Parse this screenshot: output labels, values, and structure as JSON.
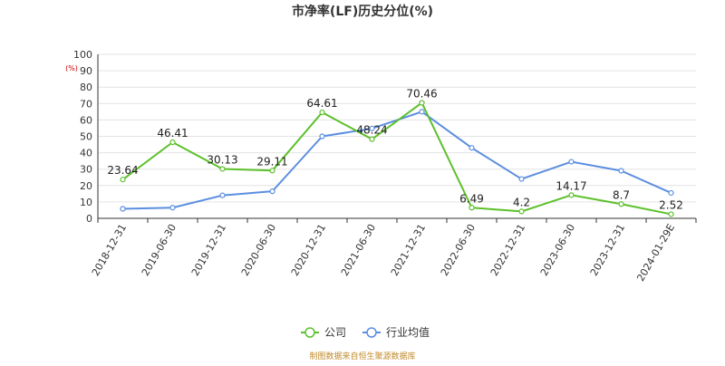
{
  "chart_data": {
    "type": "line",
    "title": "市净率(LF)历史分位(%)",
    "unit_label": "(%)",
    "ylim": [
      0,
      100
    ],
    "yticks": [
      0,
      10,
      20,
      30,
      40,
      50,
      60,
      70,
      80,
      90,
      100
    ],
    "categories": [
      "2018-12-31",
      "2019-06-30",
      "2019-12-31",
      "2020-06-30",
      "2020-12-31",
      "2021-06-30",
      "2021-12-31",
      "2022-06-30",
      "2022-12-31",
      "2023-06-30",
      "2023-12-31",
      "2024-01-29E"
    ],
    "series": [
      {
        "name": "公司",
        "color": "#5cc02a",
        "values": [
          23.64,
          46.41,
          30.13,
          29.11,
          64.61,
          48.24,
          70.46,
          6.49,
          4.2,
          14.17,
          8.7,
          2.52
        ],
        "labels": [
          "23.64",
          "46.41",
          "30.13",
          "29.11",
          "64.61",
          "48.24",
          "70.46",
          "6.49",
          "4.2",
          "14.17",
          "8.7",
          "2.52"
        ]
      },
      {
        "name": "行业均值",
        "color": "#5b8ee0",
        "values": [
          5.8,
          6.5,
          14.0,
          16.5,
          50.0,
          54.8,
          65.0,
          43.0,
          24.0,
          34.5,
          29.0,
          15.5
        ]
      }
    ],
    "grid": true,
    "legend": "bottom-center"
  },
  "source": "制图数据来自恒生聚源数据库"
}
